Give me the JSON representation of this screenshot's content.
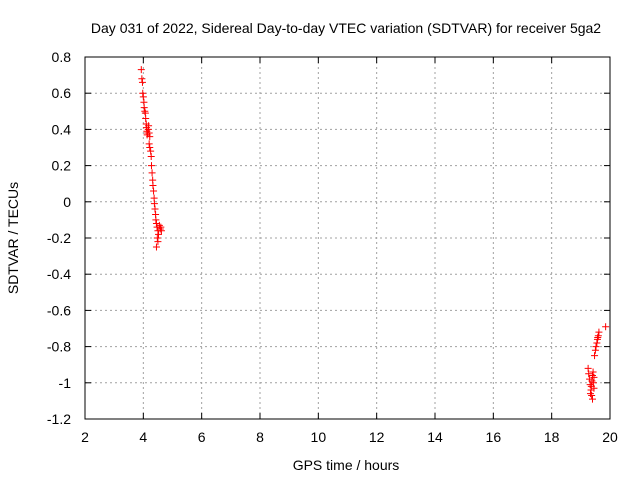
{
  "chart_data": {
    "type": "scatter",
    "title": "Day 031 of 2022, Sidereal Day-to-day VTEC variation (SDTVAR) for receiver 5ga2",
    "xlabel": "GPS time / hours",
    "ylabel": "SDTVAR / TECUs",
    "xlim": [
      2,
      20
    ],
    "ylim": [
      -1.2,
      0.8
    ],
    "xticks": [
      "2",
      "4",
      "6",
      "8",
      "10",
      "12",
      "14",
      "16",
      "18",
      "20"
    ],
    "yticks": [
      "0.8",
      "0.6",
      "0.4",
      "0.2",
      "0",
      "-0.2",
      "-0.4",
      "-0.6",
      "-0.8",
      "-1",
      "-1.2"
    ],
    "grid": true,
    "marker": "plus",
    "color": "#ff0000",
    "series": [
      {
        "name": "SDTVAR",
        "points": [
          [
            3.93,
            0.73
          ],
          [
            3.95,
            0.68
          ],
          [
            3.97,
            0.66
          ],
          [
            3.98,
            0.6
          ],
          [
            4.0,
            0.58
          ],
          [
            4.02,
            0.55
          ],
          [
            4.03,
            0.52
          ],
          [
            4.05,
            0.5
          ],
          [
            4.07,
            0.49
          ],
          [
            4.08,
            0.46
          ],
          [
            4.1,
            0.43
          ],
          [
            4.11,
            0.41
          ],
          [
            4.12,
            0.39
          ],
          [
            4.13,
            0.37
          ],
          [
            4.15,
            0.38
          ],
          [
            4.17,
            0.4
          ],
          [
            4.18,
            0.42
          ],
          [
            4.2,
            0.38
          ],
          [
            4.22,
            0.36
          ],
          [
            4.2,
            0.32
          ],
          [
            4.22,
            0.3
          ],
          [
            4.25,
            0.28
          ],
          [
            4.27,
            0.25
          ],
          [
            4.28,
            0.2
          ],
          [
            4.3,
            0.16
          ],
          [
            4.32,
            0.12
          ],
          [
            4.33,
            0.09
          ],
          [
            4.35,
            0.06
          ],
          [
            4.37,
            0.02
          ],
          [
            4.38,
            -0.01
          ],
          [
            4.4,
            -0.04
          ],
          [
            4.42,
            -0.07
          ],
          [
            4.43,
            -0.1
          ],
          [
            4.45,
            -0.12
          ],
          [
            4.47,
            -0.14
          ],
          [
            4.5,
            -0.16
          ],
          [
            4.52,
            -0.18
          ],
          [
            4.48,
            -0.2
          ],
          [
            4.5,
            -0.22
          ],
          [
            4.45,
            -0.25
          ],
          [
            4.55,
            -0.13
          ],
          [
            4.6,
            -0.14
          ],
          [
            4.62,
            -0.16
          ],
          [
            4.58,
            -0.15
          ],
          [
            19.25,
            -0.92
          ],
          [
            19.27,
            -0.95
          ],
          [
            19.3,
            -0.98
          ],
          [
            19.32,
            -1.01
          ],
          [
            19.35,
            -1.04
          ],
          [
            19.37,
            -1.07
          ],
          [
            19.4,
            -1.09
          ],
          [
            19.33,
            -1.06
          ],
          [
            19.36,
            -1.02
          ],
          [
            19.38,
            -0.99
          ],
          [
            19.4,
            -0.96
          ],
          [
            19.42,
            -0.94
          ],
          [
            19.45,
            -0.97
          ],
          [
            19.43,
            -1.0
          ],
          [
            19.45,
            -1.03
          ],
          [
            19.47,
            -0.85
          ],
          [
            19.5,
            -0.82
          ],
          [
            19.52,
            -0.8
          ],
          [
            19.55,
            -0.78
          ],
          [
            19.57,
            -0.76
          ],
          [
            19.6,
            -0.74
          ],
          [
            19.62,
            -0.72
          ],
          [
            19.58,
            -0.75
          ],
          [
            19.85,
            -0.69
          ]
        ]
      }
    ]
  }
}
